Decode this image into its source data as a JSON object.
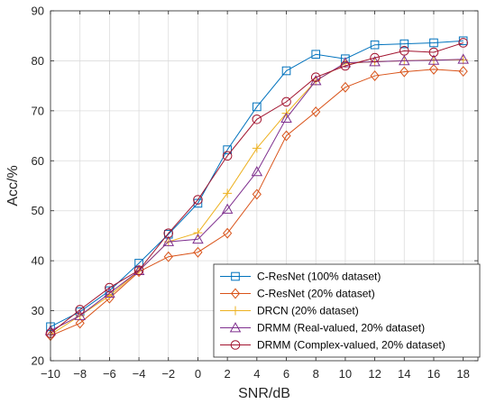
{
  "chart_data": {
    "type": "line",
    "xlabel": "SNR/dB",
    "ylabel": "Acc/%",
    "x": [
      -10,
      -8,
      -6,
      -4,
      -2,
      0,
      2,
      4,
      6,
      8,
      10,
      12,
      14,
      16,
      18
    ],
    "xticks": [
      -10,
      -8,
      -6,
      -4,
      -2,
      0,
      2,
      4,
      6,
      8,
      10,
      12,
      14,
      16,
      18
    ],
    "yticks": [
      20,
      30,
      40,
      50,
      60,
      70,
      80,
      90
    ],
    "xlim": [
      -10,
      19
    ],
    "ylim": [
      20,
      90
    ],
    "grid": true,
    "legend_position": "bottom-right",
    "series": [
      {
        "name": "C-ResNet (100% dataset)",
        "color": "#0072BD",
        "marker": "square",
        "values": [
          26.8,
          29.8,
          34.0,
          39.5,
          45.3,
          51.5,
          62.2,
          70.8,
          78.0,
          81.3,
          80.4,
          83.2,
          83.4,
          83.6,
          84.0
        ]
      },
      {
        "name": "C-ResNet (20% dataset)",
        "color": "#D95319",
        "marker": "diamond",
        "values": [
          25.0,
          27.5,
          32.5,
          37.8,
          40.8,
          41.7,
          45.5,
          53.3,
          65.0,
          69.8,
          74.7,
          77.0,
          77.8,
          78.3,
          77.9
        ]
      },
      {
        "name": "DRCN (20% dataset)",
        "color": "#EDB120",
        "marker": "plus",
        "values": [
          25.2,
          29.0,
          33.0,
          38.0,
          43.8,
          45.6,
          53.5,
          62.5,
          69.5,
          76.0,
          79.5,
          79.8,
          80.0,
          80.2,
          80.2
        ]
      },
      {
        "name": "DRMM (Real-valued, 20% dataset)",
        "color": "#7E2F8E",
        "marker": "triangle",
        "values": [
          26.0,
          29.0,
          33.5,
          38.0,
          43.8,
          44.3,
          50.3,
          57.8,
          68.5,
          76.0,
          79.6,
          79.8,
          80.0,
          80.1,
          80.3
        ]
      },
      {
        "name": "DRMM (Complex-valued, 20% dataset)",
        "color": "#A2142F",
        "marker": "circle",
        "values": [
          25.5,
          30.2,
          34.6,
          38.1,
          45.5,
          52.2,
          61.0,
          68.3,
          71.8,
          76.7,
          79.0,
          80.6,
          82.0,
          81.7,
          83.6
        ]
      }
    ]
  }
}
